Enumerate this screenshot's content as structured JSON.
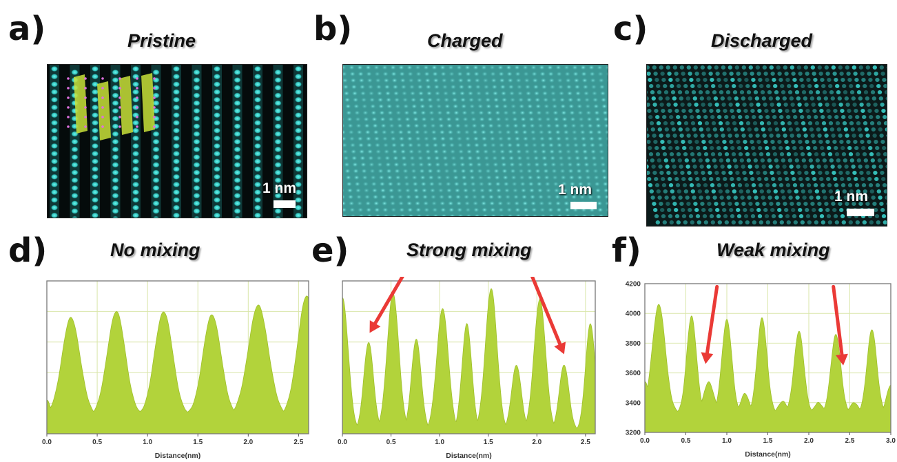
{
  "panels": {
    "a": {
      "label": "a)",
      "title": "Pristine",
      "scale": "1 nm"
    },
    "b": {
      "label": "b)",
      "title": "Charged",
      "scale": "1 nm"
    },
    "c": {
      "label": "c)",
      "title": "Discharged",
      "scale": "1 nm"
    },
    "d": {
      "label": "d)",
      "title": "No mixing"
    },
    "e": {
      "label": "e)",
      "title": "Strong mixing"
    },
    "f": {
      "label": "f)",
      "title": "Weak mixing"
    }
  },
  "colors": {
    "fill": "#b2d33b",
    "grid": "#d9e6a8",
    "arrow": "#ea3a36",
    "stem": "#35d6d0",
    "stem_bg": "#0a1a1a"
  },
  "chart_data": [
    {
      "id": "d",
      "type": "area",
      "title": "No mixing",
      "xlabel": "Distance(nm)",
      "ylabel": "",
      "xlim": [
        0,
        2.6
      ],
      "ylim": [
        0,
        1
      ],
      "x_ticks": [
        "0.0",
        "0.5",
        "1.0",
        "1.5",
        "2.0",
        "2.5"
      ],
      "y_ticks": [],
      "peaks": [
        [
          0.0,
          0.22,
          0.03
        ],
        [
          0.24,
          0.76,
          0.09
        ],
        [
          0.69,
          0.8,
          0.09
        ],
        [
          1.16,
          0.8,
          0.09
        ],
        [
          1.64,
          0.78,
          0.09
        ],
        [
          2.1,
          0.84,
          0.1
        ],
        [
          2.58,
          0.9,
          0.09
        ]
      ],
      "baseline": 0.12,
      "annotations": []
    },
    {
      "id": "e",
      "type": "area",
      "title": "Strong mixing",
      "xlabel": "Distance(nm)",
      "ylabel": "",
      "xlim": [
        0,
        2.6
      ],
      "ylim": [
        0,
        1
      ],
      "x_ticks": [
        "0.0",
        "0.5",
        "1.0",
        "1.5",
        "2.0",
        "2.5"
      ],
      "y_ticks": [],
      "peaks": [
        [
          0.0,
          0.89,
          0.06
        ],
        [
          0.27,
          0.6,
          0.05
        ],
        [
          0.52,
          0.92,
          0.06
        ],
        [
          0.76,
          0.62,
          0.05
        ],
        [
          1.03,
          0.82,
          0.06
        ],
        [
          1.28,
          0.72,
          0.05
        ],
        [
          1.53,
          0.95,
          0.06
        ],
        [
          1.79,
          0.45,
          0.05
        ],
        [
          2.03,
          0.88,
          0.06
        ],
        [
          2.28,
          0.45,
          0.05
        ],
        [
          2.55,
          0.72,
          0.05
        ]
      ],
      "baseline": 0.02,
      "annotations": [
        {
          "from": [
            0.72,
            1.14
          ],
          "to": [
            0.28,
            0.66
          ]
        },
        {
          "from": [
            1.88,
            1.14
          ],
          "to": [
            2.28,
            0.52
          ]
        }
      ]
    },
    {
      "id": "f",
      "type": "area",
      "title": "Weak mixing",
      "xlabel": "Distance(nm)",
      "ylabel": "",
      "xlim": [
        0,
        3.0
      ],
      "ylim": [
        3200,
        4200
      ],
      "x_ticks": [
        "0.0",
        "0.5",
        "1.0",
        "1.5",
        "2.0",
        "2.5",
        "3.0"
      ],
      "y_ticks": [
        "3200",
        "3400",
        "3600",
        "3800",
        "4000",
        "4200"
      ],
      "peaks": [
        [
          0.0,
          3540,
          0.05
        ],
        [
          0.17,
          4060,
          0.08
        ],
        [
          0.57,
          3980,
          0.06
        ],
        [
          0.78,
          3540,
          0.06
        ],
        [
          1.0,
          3960,
          0.06
        ],
        [
          1.22,
          3460,
          0.05
        ],
        [
          1.43,
          3970,
          0.06
        ],
        [
          1.68,
          3410,
          0.05
        ],
        [
          1.88,
          3880,
          0.06
        ],
        [
          2.12,
          3400,
          0.05
        ],
        [
          2.33,
          3860,
          0.06
        ],
        [
          2.55,
          3400,
          0.05
        ],
        [
          2.77,
          3890,
          0.06
        ],
        [
          3.0,
          3520,
          0.05
        ]
      ],
      "baseline": 3330,
      "annotations": [
        {
          "from": [
            0.88,
            4180
          ],
          "to": [
            0.74,
            3660
          ]
        },
        {
          "from": [
            2.3,
            4180
          ],
          "to": [
            2.42,
            3650
          ]
        }
      ]
    }
  ]
}
